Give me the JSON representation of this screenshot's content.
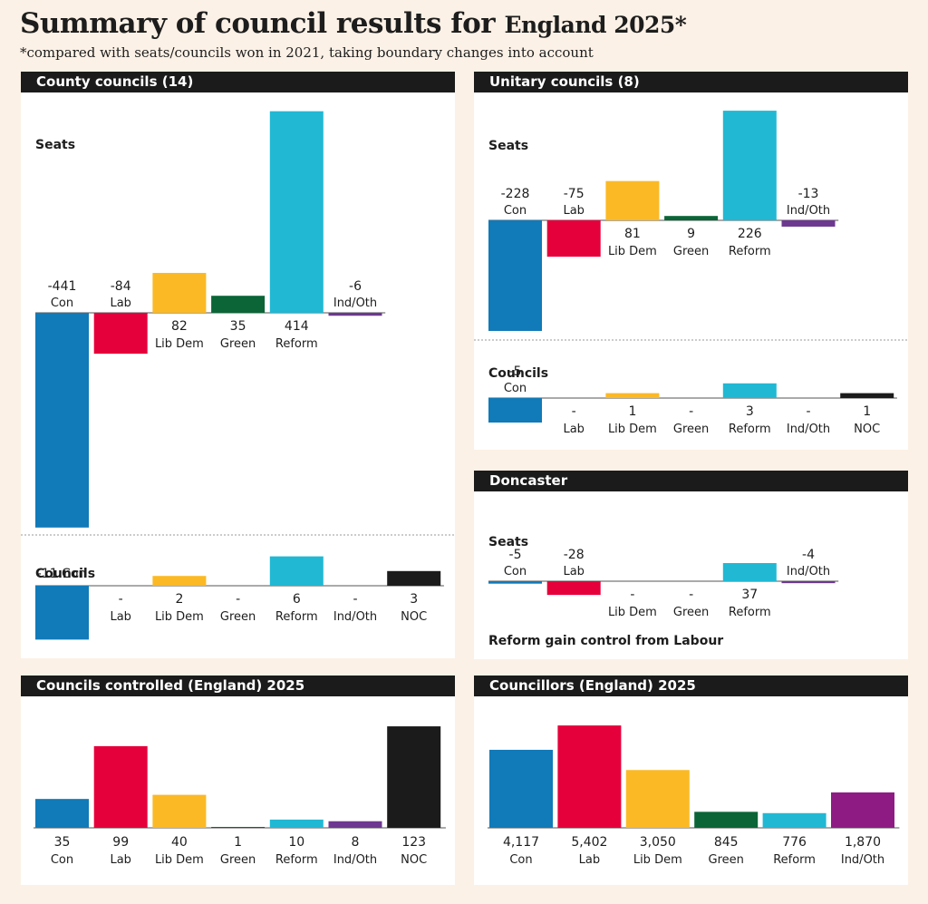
{
  "header": {
    "title_main": "Summary of council results for",
    "title_region": "England 2025*",
    "subtitle": "*compared with seats/councils won in 2021, taking boundary changes into account"
  },
  "colors": {
    "Con": "#117ab8",
    "Lab": "#e5003b",
    "Lib Dem": "#fbb925",
    "Green": "#0b6537",
    "Reform": "#21b8d3",
    "Ind/Oth": "#6d3890",
    "Ind/Oth (councillors)": "#8e1b84",
    "NOC": "#1b1b1b"
  },
  "panels": {
    "county": {
      "title": "County councils (14)",
      "seats_label": "Seats",
      "councils_label": "Councils",
      "con_councils_label": "-11 Con"
    },
    "unitary": {
      "title": "Unitary councils (8)",
      "seats_label": "Seats",
      "councils_label": "Councils"
    },
    "doncaster": {
      "title": "Doncaster",
      "seats_label": "Seats",
      "note": "Reform gain control from Labour"
    },
    "controlled": {
      "title": "Councils controlled (England) 2025"
    },
    "councillors": {
      "title": "Councillors (England) 2025"
    }
  },
  "chart_data": [
    {
      "id": "county_seats",
      "type": "bar",
      "title": "Seats",
      "categories": [
        "Con",
        "Lab",
        "Lib Dem",
        "Green",
        "Reform",
        "Ind/Oth"
      ],
      "values": [
        -441,
        -84,
        82,
        35,
        414,
        -6
      ],
      "labels": [
        "-441",
        "-84",
        "82",
        "35",
        "414",
        "-6"
      ]
    },
    {
      "id": "county_councils",
      "type": "bar",
      "title": "Councils",
      "categories": [
        "Con",
        "Lab",
        "Lib Dem",
        "Green",
        "Reform",
        "Ind/Oth",
        "NOC"
      ],
      "values": [
        -11,
        0,
        2,
        0,
        6,
        0,
        3
      ],
      "labels": [
        "-11",
        "-",
        "2",
        "-",
        "6",
        "-",
        "3"
      ]
    },
    {
      "id": "unitary_seats",
      "type": "bar",
      "title": "Seats",
      "categories": [
        "Con",
        "Lab",
        "Lib Dem",
        "Green",
        "Reform",
        "Ind/Oth"
      ],
      "values": [
        -228,
        -75,
        81,
        9,
        226,
        -13
      ],
      "labels": [
        "-228",
        "-75",
        "81",
        "9",
        "226",
        "-13"
      ]
    },
    {
      "id": "unitary_councils",
      "type": "bar",
      "title": "Councils",
      "categories": [
        "Con",
        "Lab",
        "Lib Dem",
        "Green",
        "Reform",
        "Ind/Oth",
        "NOC"
      ],
      "values": [
        -5,
        0,
        1,
        0,
        3,
        0,
        1
      ],
      "labels": [
        "-5",
        "-",
        "1",
        "-",
        "3",
        "-",
        "1"
      ]
    },
    {
      "id": "doncaster_seats",
      "type": "bar",
      "title": "Seats",
      "categories": [
        "Con",
        "Lab",
        "Lib Dem",
        "Green",
        "Reform",
        "Ind/Oth"
      ],
      "values": [
        -5,
        -28,
        0,
        0,
        37,
        -4
      ],
      "labels": [
        "-5",
        "-28",
        "-",
        "-",
        "37",
        "-4"
      ]
    },
    {
      "id": "councils_controlled",
      "type": "bar",
      "title": "Councils controlled (England) 2025",
      "categories": [
        "Con",
        "Lab",
        "Lib Dem",
        "Green",
        "Reform",
        "Ind/Oth",
        "NOC"
      ],
      "values": [
        35,
        99,
        40,
        1,
        10,
        8,
        123
      ],
      "labels": [
        "35",
        "99",
        "40",
        "1",
        "10",
        "8",
        "123"
      ]
    },
    {
      "id": "councillors",
      "type": "bar",
      "title": "Councillors (England) 2025",
      "categories": [
        "Con",
        "Lab",
        "Lib Dem",
        "Green",
        "Reform",
        "Ind/Oth"
      ],
      "values": [
        4117,
        5402,
        3050,
        845,
        776,
        1870
      ],
      "labels": [
        "4,117",
        "5,402",
        "3,050",
        "845",
        "776",
        "1,870"
      ]
    }
  ]
}
